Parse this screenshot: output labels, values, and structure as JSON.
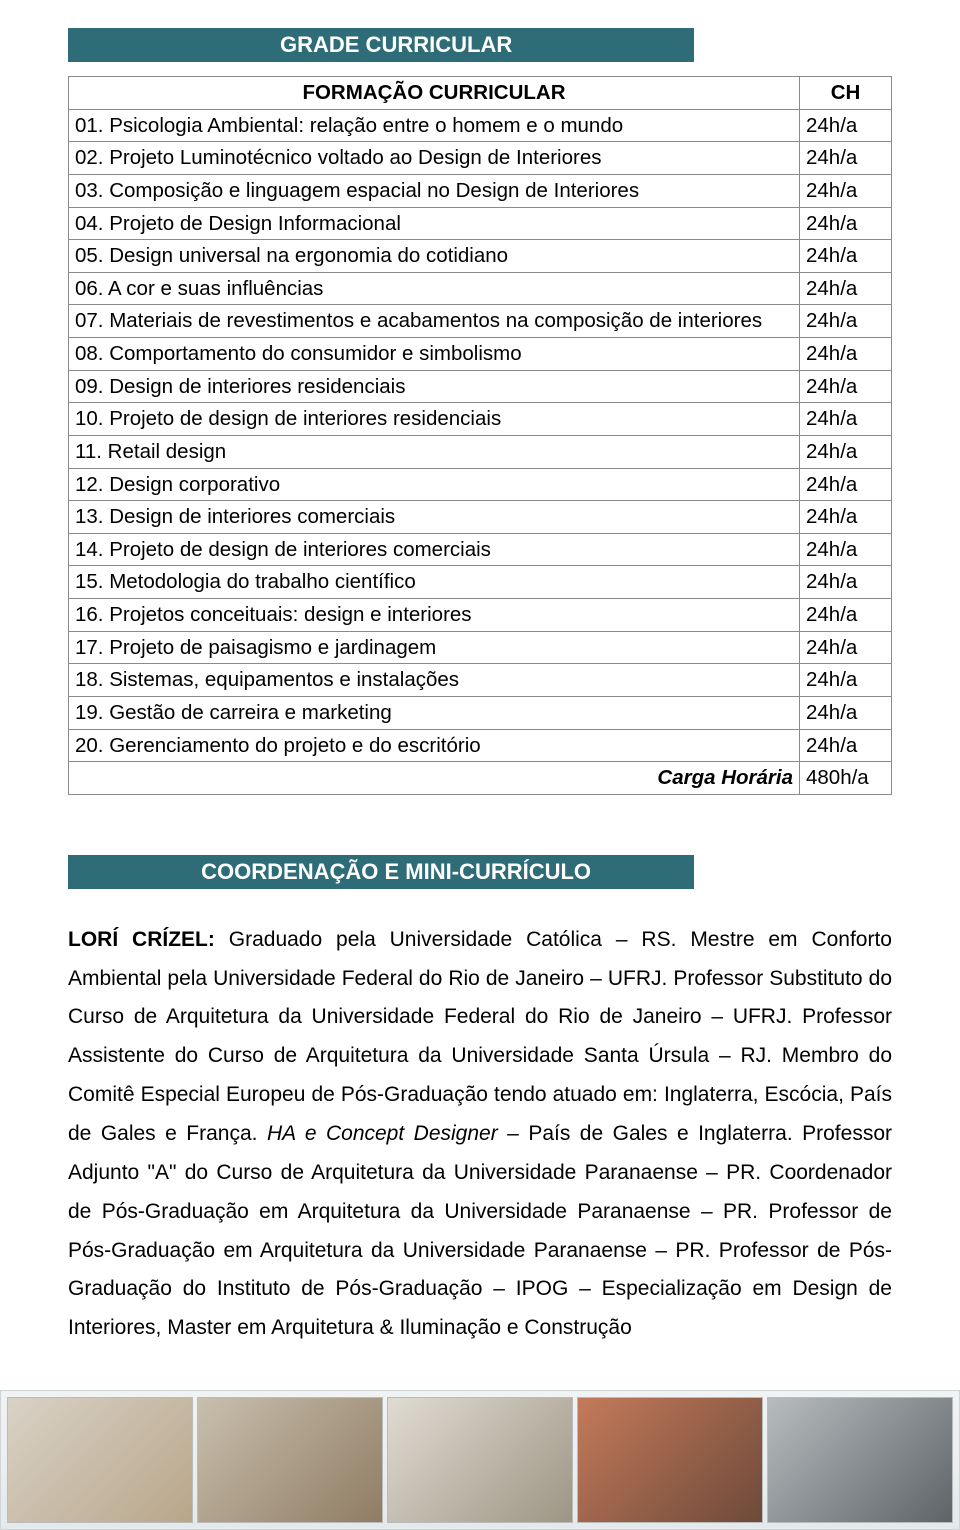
{
  "headers": {
    "grade": "GRADE CURRICULAR",
    "formacao": "FORMAÇÃO CURRICULAR",
    "ch": "CH",
    "coord": "COORDENAÇÃO E MINI-CURRÍCULO"
  },
  "rows": [
    {
      "label": "01. Psicologia Ambiental: relação entre o homem e o mundo",
      "ch": "24h/a"
    },
    {
      "label": "02. Projeto Luminotécnico voltado ao Design de Interiores",
      "ch": "24h/a"
    },
    {
      "label": "03. Composição e linguagem espacial no Design de Interiores",
      "ch": "24h/a"
    },
    {
      "label": "04. Projeto de Design Informacional",
      "ch": "24h/a"
    },
    {
      "label": "05. Design universal na ergonomia do cotidiano",
      "ch": "24h/a"
    },
    {
      "label": "06. A cor e suas influências",
      "ch": "24h/a"
    },
    {
      "label": "07. Materiais de revestimentos e acabamentos na composição de interiores",
      "ch": "24h/a"
    },
    {
      "label": "08. Comportamento do consumidor e simbolismo",
      "ch": "24h/a"
    },
    {
      "label": "09. Design de interiores residenciais",
      "ch": "24h/a"
    },
    {
      "label": "10. Projeto de design de interiores residenciais",
      "ch": "24h/a"
    },
    {
      "label": "11. Retail design",
      "ch": "24h/a"
    },
    {
      "label": "12. Design corporativo",
      "ch": "24h/a"
    },
    {
      "label": "13. Design de interiores comerciais",
      "ch": "24h/a"
    },
    {
      "label": "14. Projeto de design de interiores comerciais",
      "ch": "24h/a"
    },
    {
      "label": "15. Metodologia do trabalho científico",
      "ch": "24h/a"
    },
    {
      "label": "16. Projetos conceituais: design e interiores",
      "ch": "24h/a"
    },
    {
      "label": "17. Projeto de paisagismo e jardinagem",
      "ch": "24h/a"
    },
    {
      "label": "18. Sistemas, equipamentos e instalações",
      "ch": "24h/a"
    },
    {
      "label": "19. Gestão de carreira e marketing",
      "ch": "24h/a"
    },
    {
      "label": "20. Gerenciamento do projeto e do escritório",
      "ch": "24h/a"
    }
  ],
  "carga": {
    "label": "Carga Horária",
    "value": "480h/a"
  },
  "bio": {
    "name": "LORÍ CRÍZEL:",
    "p1a": " Graduado pela Universidade Católica – RS. Mestre em Conforto Ambiental pela Universidade Federal do Rio de Janeiro – UFRJ. Professor Substituto do Curso de Arquitetura da Universidade Federal do Rio de Janeiro – UFRJ. Professor Assistente do Curso de Arquitetura da Universidade Santa Úrsula – RJ. Membro do Comitê Especial Europeu de Pós-Graduação tendo atuado em: Inglaterra, Escócia, País de Gales e França. ",
    "italic1": "HA e Concept Designer",
    "p1b": " – País de Gales e Inglaterra. Professor Adjunto \"A\" do Curso de Arquitetura da Universidade Paranaense – PR. Coordenador de Pós-Graduação em Arquitetura da Universidade Paranaense – PR. Professor de Pós-Graduação em Arquitetura da Universidade Paranaense – PR. Professor de Pós-Graduação do Instituto de Pós-Graduação – IPOG – Especialização em Design de Interiores, Master em Arquitetura & Iluminação e Construção"
  },
  "colors": {
    "banner_bg": "#2e6c78",
    "banner_fg": "#ffffff",
    "border": "#8a8a8a"
  }
}
